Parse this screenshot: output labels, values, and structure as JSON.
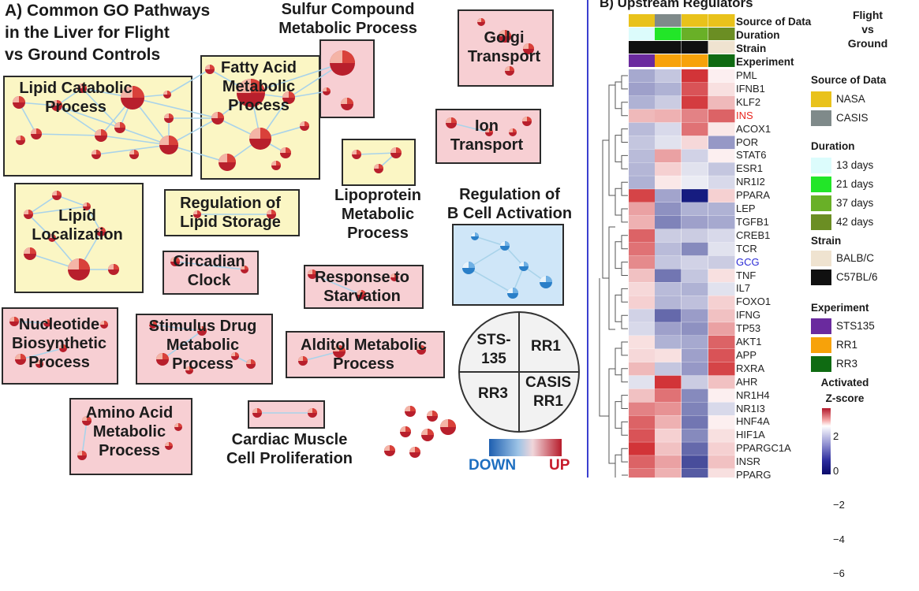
{
  "panel_a": {
    "title_lines": [
      "A) Common GO Pathways",
      "in the Liver for Flight",
      "vs Ground Controls"
    ],
    "clusters": {
      "lipid_catabolic": "Lipid Catabolic\nProcess",
      "fatty_acid": "Fatty Acid\nMetabolic\nProcess",
      "sulfur": "Sulfur Compound\nMetabolic Process",
      "golgi": "Golgi\nTransport",
      "ion": "Ion\nTransport",
      "lipoprotein": "Lipoprotein\nMetabolic\nProcess",
      "lipid_localization": "Lipid\nLocalization",
      "lipid_storage": "Regulation of\nLipid Storage",
      "circadian": "Circadian\nClock",
      "starvation": "Response to\nStarvation",
      "nucleotide": "Nucleotide\nBiosynthetic\nProcess",
      "stimulus_drug": "Stimulus Drug\nMetabolic\nProcess",
      "alditol": "Alditol Metabolic\nProcess",
      "amino_acid": "Amino Acid\nMetabolic\nProcess",
      "cardiac": "Cardiac Muscle\nCell Proliferation",
      "cell_activation": "Regulation of\nB Cell Activation"
    },
    "key": {
      "q1": "STS-\n135",
      "q2": "RR1",
      "q3": "RR3",
      "q4": "CASIS\nRR1"
    },
    "colorbar": {
      "down": "DOWN",
      "up": "UP"
    }
  },
  "panel_b": {
    "title": "B) Upstream Regulators",
    "header_rows": [
      "Source of Data",
      "Duration",
      "Strain",
      "Experiment"
    ],
    "header_colors": {
      "source": [
        "#e9c21b",
        "#7f8a8a",
        "#e9c21b",
        "#e9c21b"
      ],
      "duration": [
        "#dcfcfc",
        "#22e628",
        "#69b027",
        "#6b8e23"
      ],
      "strain": [
        "#101010",
        "#101010",
        "#101010",
        "#efe3d0"
      ],
      "experiment": [
        "#6a2a9e",
        "#f7a20a",
        "#f7a20a",
        "#0f6b12"
      ]
    },
    "flight_label": "Flight\nvs\nGround",
    "genes": [
      "PML",
      "IFNB1",
      "KLF2",
      "INS",
      "ACOX1",
      "POR",
      "STAT6",
      "ESR1",
      "NR1I2",
      "PPARA",
      "LEP",
      "TGFB1",
      "CREB1",
      "TCR",
      "GCG",
      "TNF",
      "IL7",
      "FOXO1",
      "IFNG",
      "TP53",
      "AKT1",
      "APP",
      "RXRA",
      "AHR",
      "NR1H4",
      "NR1I3",
      "HNF4A",
      "HIF1A",
      "PPARGC1A",
      "INSR",
      "PPARG"
    ],
    "highlight": {
      "INS": "#e8261f",
      "GCG": "#2b2bd6"
    },
    "legend": {
      "source_title": "Source of Data",
      "source_items": [
        {
          "label": "NASA",
          "color": "#e9c21b"
        },
        {
          "label": "CASIS",
          "color": "#7f8a8a"
        }
      ],
      "duration_title": "Duration",
      "duration_items": [
        {
          "label": "13 days",
          "color": "#dcfcfc"
        },
        {
          "label": "21 days",
          "color": "#22e628"
        },
        {
          "label": "37 days",
          "color": "#69b027"
        },
        {
          "label": "42 days",
          "color": "#6b8e23"
        }
      ],
      "strain_title": "Strain",
      "strain_items": [
        {
          "label": "BALB/C",
          "color": "#efe3d0"
        },
        {
          "label": "C57BL/6",
          "color": "#101010"
        }
      ],
      "experiment_title": "Experiment",
      "experiment_items": [
        {
          "label": "STS135",
          "color": "#6a2a9e"
        },
        {
          "label": "RR1",
          "color": "#f7a20a"
        },
        {
          "label": "RR3",
          "color": "#0f6b12"
        }
      ],
      "zscore_title": "Activated\nZ-score",
      "zscore_ticks": [
        "2",
        "0",
        "−2",
        "−4",
        "−6"
      ]
    },
    "heatmap_z": [
      [
        -1.2,
        -0.6,
        2.6,
        0.2
      ],
      [
        -1.4,
        -1.0,
        2.2,
        0.4
      ],
      [
        -1.0,
        -0.5,
        2.5,
        0.9
      ],
      [
        0.9,
        1.0,
        1.6,
        2.0
      ],
      [
        -0.8,
        -0.3,
        1.8,
        0.3
      ],
      [
        -0.6,
        -0.2,
        0.5,
        -1.6
      ],
      [
        -0.8,
        1.2,
        -0.4,
        0.2
      ],
      [
        -0.9,
        0.6,
        -0.2,
        -0.6
      ],
      [
        -1.0,
        0.3,
        -0.1,
        -0.3
      ],
      [
        2.4,
        -1.3,
        -6.0,
        0.6
      ],
      [
        1.2,
        -1.8,
        -1.0,
        -1.0
      ],
      [
        1.0,
        -2.2,
        -1.4,
        -1.2
      ],
      [
        2.0,
        -0.5,
        -0.5,
        -0.3
      ],
      [
        1.8,
        -0.8,
        -2.0,
        -0.2
      ],
      [
        1.5,
        -0.6,
        -0.4,
        -0.5
      ],
      [
        0.8,
        -2.6,
        -0.6,
        0.4
      ],
      [
        0.5,
        -0.8,
        -1.0,
        -0.2
      ],
      [
        0.6,
        -0.9,
        -0.7,
        0.6
      ],
      [
        -0.4,
        -3.0,
        -1.5,
        0.8
      ],
      [
        -0.3,
        -1.4,
        -1.8,
        1.2
      ],
      [
        0.4,
        -1.0,
        -1.2,
        2.0
      ],
      [
        0.5,
        0.4,
        -1.4,
        2.2
      ],
      [
        0.9,
        -0.6,
        -1.6,
        2.4
      ],
      [
        -0.2,
        2.6,
        -0.5,
        0.8
      ],
      [
        0.8,
        1.8,
        -2.0,
        0.2
      ],
      [
        1.6,
        1.4,
        -2.2,
        -0.3
      ],
      [
        2.0,
        1.0,
        -2.6,
        0.2
      ],
      [
        2.2,
        0.6,
        -2.0,
        0.4
      ],
      [
        2.6,
        0.8,
        -3.0,
        0.6
      ],
      [
        2.0,
        1.2,
        -4.0,
        0.8
      ],
      [
        1.8,
        1.0,
        -3.5,
        0.4
      ]
    ]
  }
}
